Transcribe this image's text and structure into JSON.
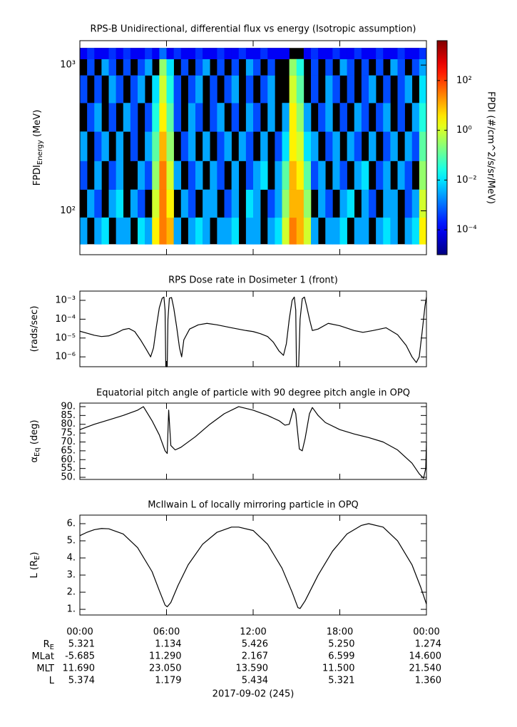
{
  "chart_data": [
    {
      "type": "heatmap",
      "title": "RPS-B  Unidirectional, differential flux vs energy (Isotropic assumption)",
      "ylabel": {
        "main": "FPDI",
        "sub": "Energy",
        "rest": " (MeV)"
      },
      "xlim": [
        0,
        24
      ],
      "xticks": [
        0,
        6,
        12,
        18,
        24
      ],
      "ylim": [
        50,
        1470
      ],
      "ylog": true,
      "yticks": [
        {
          "value": 1000,
          "label": "10³"
        },
        {
          "value": 100,
          "label": "10²"
        }
      ],
      "x_bins": [
        0,
        0.5,
        1,
        1.5,
        2,
        2.5,
        3,
        3.5,
        4,
        4.5,
        5,
        5.5,
        6,
        6.5,
        7,
        7.5,
        8,
        8.5,
        9,
        9.5,
        10,
        10.5,
        11,
        11.5,
        12,
        12.5,
        13,
        13.5,
        14,
        14.5,
        15,
        15.5,
        16,
        16.5,
        17,
        17.5,
        18,
        18.5,
        19,
        19.5,
        20,
        20.5,
        21,
        21.5,
        22,
        22.5,
        23,
        23.5,
        24
      ],
      "y_bins": [
        59,
        90,
        140,
        220,
        350,
        550,
        850,
        1100,
        1310
      ],
      "values": [
        [
          0.003,
          null,
          0.003,
          0.01,
          null,
          0.003,
          0.003,
          null,
          0.01,
          0.003,
          3,
          30,
          10,
          0.003,
          null,
          0.003,
          0.01,
          0.003,
          null,
          0.003,
          0.003,
          0.01,
          null,
          0.003,
          0.003,
          null,
          0.003,
          0.01,
          1,
          30,
          10,
          1,
          0.003,
          null,
          0.003,
          0.003,
          0.01,
          null,
          0.003,
          0.003,
          null,
          0.003,
          0.01,
          0.003,
          null,
          0.003,
          0.01,
          3
        ],
        [
          null,
          0.003,
          0.0005,
          null,
          0.003,
          0.01,
          null,
          0.003,
          0.0005,
          null,
          1,
          30,
          3,
          null,
          0.003,
          0.0005,
          null,
          0.003,
          0.003,
          null,
          0.0005,
          0.003,
          null,
          0.01,
          0.003,
          null,
          0.0005,
          0.003,
          0.3,
          10,
          10,
          0.3,
          null,
          0.003,
          0.0005,
          null,
          0.003,
          0.01,
          null,
          0.003,
          0.0005,
          null,
          0.003,
          0.003,
          null,
          0.0005,
          0.003,
          1
        ],
        [
          0.0005,
          null,
          0.003,
          null,
          0.0005,
          0.003,
          null,
          null,
          0.003,
          0.0005,
          0.3,
          30,
          1,
          0.003,
          null,
          0.0005,
          0.003,
          null,
          0.003,
          0.0005,
          null,
          0.003,
          null,
          0.0005,
          0.003,
          0.01,
          null,
          0.003,
          0.1,
          10,
          3,
          0.1,
          0.0005,
          0.003,
          null,
          0.003,
          0.0005,
          null,
          0.003,
          0.01,
          null,
          0.0005,
          0.003,
          null,
          0.003,
          0.0005,
          null,
          0.3
        ],
        [
          0.003,
          null,
          0.0005,
          0.003,
          null,
          0.003,
          null,
          0.0005,
          null,
          0.003,
          0.1,
          10,
          0.3,
          null,
          0.0005,
          0.003,
          null,
          0.003,
          null,
          0.0005,
          0.003,
          null,
          0.003,
          0.0005,
          null,
          0.003,
          null,
          0.0005,
          0.01,
          3,
          1,
          0.01,
          0.003,
          null,
          0.0005,
          0.003,
          null,
          0.003,
          0.0005,
          null,
          0.003,
          null,
          0.0005,
          0.003,
          null,
          0.003,
          0.0005,
          0.1
        ],
        [
          null,
          0.0005,
          0.003,
          null,
          0.0005,
          null,
          0.003,
          0.0005,
          null,
          0.0005,
          0.03,
          3,
          0.1,
          0.0005,
          null,
          0.003,
          0.0005,
          null,
          0.0005,
          0.003,
          null,
          0.0005,
          null,
          0.003,
          0.0005,
          null,
          0.003,
          null,
          0.003,
          3,
          0.3,
          0.003,
          null,
          0.0005,
          0.003,
          null,
          0.0005,
          null,
          0.003,
          0.0005,
          null,
          0.0005,
          0.003,
          null,
          0.0005,
          null,
          0.003,
          0.03
        ],
        [
          0.0005,
          null,
          0.0005,
          null,
          0.003,
          0.0005,
          null,
          0.0005,
          0.003,
          null,
          0.01,
          1,
          0.03,
          0.0005,
          null,
          0.0005,
          0.003,
          null,
          0.0005,
          null,
          0.0005,
          0.003,
          null,
          0.0005,
          null,
          0.0005,
          0.003,
          null,
          null,
          1,
          0.1,
          null,
          0.0005,
          null,
          0.003,
          0.0005,
          null,
          0.0005,
          null,
          0.0005,
          0.003,
          null,
          0.0005,
          null,
          0.0005,
          0.003,
          null,
          0.01
        ],
        [
          null,
          0.0005,
          null,
          0.003,
          0.0005,
          null,
          0.0005,
          null,
          0.0005,
          0.003,
          null,
          0.3,
          0.01,
          null,
          0.0005,
          null,
          0.0005,
          0.003,
          null,
          0.0005,
          null,
          0.0005,
          null,
          0.003,
          0.0005,
          null,
          0.0005,
          null,
          null,
          0.3,
          0.03,
          null,
          0.0005,
          null,
          0.0005,
          null,
          0.003,
          0.0005,
          null,
          0.0005,
          null,
          0.0005,
          null,
          0.003,
          0.0005,
          null,
          0.0005,
          0.003
        ],
        [
          0.0001,
          0.0003,
          0.0001,
          0.0001,
          0.0003,
          0.0001,
          0.0003,
          0.0001,
          0.0001,
          0.0003,
          0.0001,
          0.001,
          0.0001,
          0.0003,
          0.0001,
          0.0001,
          0.0003,
          0.0001,
          0.0001,
          0.0003,
          0.0001,
          0.0001,
          0.0003,
          0.0001,
          0.0001,
          0.0003,
          0.0001,
          0.0001,
          0.0001,
          null,
          null,
          0.0001,
          0.0003,
          0.0001,
          0.0001,
          0.0003,
          0.0001,
          0.0001,
          0.0003,
          0.0001,
          0.0001,
          0.0003,
          0.0001,
          0.0001,
          0.0003,
          0.0001,
          0.0001,
          0.0003
        ]
      ],
      "colorbar": {
        "label": "FPDI (#/cm^2/s/sr/MeV)",
        "clim": [
          1e-05,
          4000
        ],
        "log": true,
        "cticks": [
          {
            "value": 100,
            "label": "10²"
          },
          {
            "value": 1,
            "label": "10⁰"
          },
          {
            "value": 0.01,
            "label": "10⁻²"
          },
          {
            "value": 0.0001,
            "label": "10⁻⁴"
          }
        ]
      }
    },
    {
      "type": "line",
      "title": "RPS  Dose rate in Dosimeter 1 (front)",
      "ylabel": {
        "main": "(rads/sec)"
      },
      "xlim": [
        0,
        24
      ],
      "xticks": [
        0,
        6,
        12,
        18,
        24
      ],
      "ylim": [
        3e-07,
        0.0031
      ],
      "ylog": true,
      "yticks": [
        {
          "value": 0.001,
          "label": "10⁻³"
        },
        {
          "value": 0.0001,
          "label": "10⁻⁴"
        },
        {
          "value": 1e-05,
          "label": "10⁻⁵"
        },
        {
          "value": 1e-06,
          "label": "10⁻⁶"
        }
      ],
      "color": "#000000",
      "x": [
        0,
        0.5,
        1,
        1.5,
        2,
        2.5,
        3,
        3.4,
        3.8,
        4.2,
        4.6,
        4.9,
        5.1,
        5.3,
        5.5,
        5.7,
        5.82,
        5.9,
        5.95,
        6.05,
        6.1,
        6.2,
        6.35,
        6.5,
        6.7,
        6.9,
        7.05,
        7.2,
        7.6,
        8.2,
        8.8,
        9.5,
        10.5,
        11.5,
        12,
        12.5,
        13,
        13.4,
        13.8,
        14.1,
        14.3,
        14.5,
        14.7,
        14.85,
        14.95,
        15,
        15.15,
        15.25,
        15.4,
        15.55,
        15.7,
        15.9,
        16.1,
        16.5,
        17.2,
        18,
        19,
        19.6,
        20.3,
        21.2,
        22,
        22.6,
        23,
        23.3,
        23.5,
        23.7,
        23.9,
        24
      ],
      "values": [
        2.3e-05,
        1.8e-05,
        1.4e-05,
        1.2e-05,
        1.3e-05,
        1.8e-05,
        2.8e-05,
        3.2e-05,
        2.2e-05,
        8e-06,
        2.5e-06,
        1e-06,
        3e-06,
        4e-05,
        0.0004,
        0.0013,
        0.0015,
        0.0003,
        3e-07,
        3e-07,
        0.0001,
        0.0013,
        0.0014,
        0.0004,
        4e-05,
        3e-06,
        1e-06,
        8e-06,
        3e-05,
        5e-05,
        6e-05,
        5e-05,
        3.5e-05,
        2.5e-05,
        2.2e-05,
        1.7e-05,
        1.2e-05,
        6e-06,
        2e-06,
        1.2e-06,
        5e-06,
        0.0001,
        0.001,
        0.0015,
        0.0003,
        3e-07,
        3e-07,
        0.0001,
        0.0012,
        0.0015,
        0.0005,
        0.0001,
        2.5e-05,
        3e-05,
        6e-05,
        4.5e-05,
        2.5e-05,
        2e-05,
        2.5e-05,
        3.5e-05,
        1.5e-05,
        4e-06,
        1e-06,
        5e-07,
        1e-06,
        2e-05,
        0.0005,
        0.0015
      ]
    },
    {
      "type": "line",
      "title": "Equatorial pitch angle of particle with 90 degree pitch angle in OPQ",
      "ylabel": {
        "main": "α",
        "sub": "Eq",
        "rest": " (deg)"
      },
      "xlim": [
        0,
        24
      ],
      "xticks": [
        0,
        6,
        12,
        18,
        24
      ],
      "ylim": [
        48.8,
        92
      ],
      "yticks": [
        {
          "value": 50,
          "label": "50."
        },
        {
          "value": 55,
          "label": "55."
        },
        {
          "value": 60,
          "label": "60."
        },
        {
          "value": 65,
          "label": "65."
        },
        {
          "value": 70,
          "label": "70."
        },
        {
          "value": 75,
          "label": "75."
        },
        {
          "value": 80,
          "label": "80."
        },
        {
          "value": 85,
          "label": "85."
        },
        {
          "value": 90,
          "label": "90."
        }
      ],
      "color": "#000000",
      "x": [
        0,
        1,
        2,
        3,
        4,
        4.4,
        5,
        5.5,
        5.9,
        6.05,
        6.15,
        6.3,
        6.6,
        7,
        8,
        9,
        10,
        11,
        12,
        13,
        13.8,
        14.2,
        14.5,
        14.8,
        14.95,
        15.2,
        15.4,
        15.6,
        15.9,
        16.1,
        16.5,
        17,
        18,
        19,
        20,
        21,
        22,
        23,
        23.5,
        23.8,
        23.95,
        24
      ],
      "values": [
        77,
        80,
        82.5,
        85,
        88,
        90,
        82,
        74,
        65,
        63.5,
        88,
        68,
        65.5,
        67,
        73,
        80,
        86,
        90,
        88,
        85,
        82,
        79.5,
        80,
        89,
        86,
        66,
        65,
        72,
        86,
        89.5,
        85,
        81,
        77,
        74.5,
        72.5,
        70,
        65.5,
        58,
        52,
        49.5,
        55,
        70
      ]
    },
    {
      "type": "line",
      "title": "McIlwain L of locally mirroring particle in OPQ",
      "ylabel": {
        "main": "L (R",
        "sub": "E",
        "rest": ")"
      },
      "xlim": [
        0,
        24
      ],
      "xticks": [
        {
          "value": 0,
          "label": "00:00"
        },
        {
          "value": 6,
          "label": "06:00"
        },
        {
          "value": 12,
          "label": "12:00"
        },
        {
          "value": 18,
          "label": "18:00"
        },
        {
          "value": 24,
          "label": "00:00"
        }
      ],
      "ylim": [
        0.67,
        6.5
      ],
      "yticks": [
        {
          "value": 1,
          "label": "1."
        },
        {
          "value": 2,
          "label": "2."
        },
        {
          "value": 3,
          "label": "3."
        },
        {
          "value": 4,
          "label": "4."
        },
        {
          "value": 5,
          "label": "5."
        },
        {
          "value": 6,
          "label": "6."
        }
      ],
      "color": "#000000",
      "x": [
        0,
        0.5,
        1,
        1.5,
        2,
        3,
        4,
        5,
        5.5,
        5.9,
        6.05,
        6.3,
        6.8,
        7.5,
        8.5,
        9.5,
        10.5,
        11,
        12,
        13,
        14,
        14.7,
        15.1,
        15.25,
        15.6,
        16.5,
        17.5,
        18.5,
        19.5,
        20,
        21,
        22,
        23,
        23.6,
        24
      ],
      "values": [
        5.3,
        5.5,
        5.65,
        5.72,
        5.7,
        5.4,
        4.6,
        3.2,
        2.1,
        1.25,
        1.15,
        1.4,
        2.4,
        3.6,
        4.8,
        5.5,
        5.8,
        5.8,
        5.6,
        4.8,
        3.4,
        2,
        1.1,
        1.05,
        1.5,
        3,
        4.4,
        5.4,
        5.9,
        6,
        5.8,
        5,
        3.6,
        2.3,
        1.3
      ]
    }
  ],
  "ephemeris": {
    "rows": [
      {
        "label": {
          "main": "R",
          "sub": "E"
        },
        "values": [
          "5.321",
          "1.134",
          "5.426",
          "5.250",
          "1.274"
        ]
      },
      {
        "label": {
          "main": "MLat"
        },
        "values": [
          "-5.685",
          "11.290",
          "2.167",
          "6.599",
          "14.600"
        ]
      },
      {
        "label": {
          "main": "MLT"
        },
        "values": [
          "11.690",
          "23.050",
          "13.590",
          "11.500",
          "21.540"
        ]
      },
      {
        "label": {
          "main": "L"
        },
        "values": [
          "5.374",
          "1.179",
          "5.434",
          "5.321",
          "1.360"
        ]
      }
    ],
    "date": "2017-09-02 (245)"
  }
}
